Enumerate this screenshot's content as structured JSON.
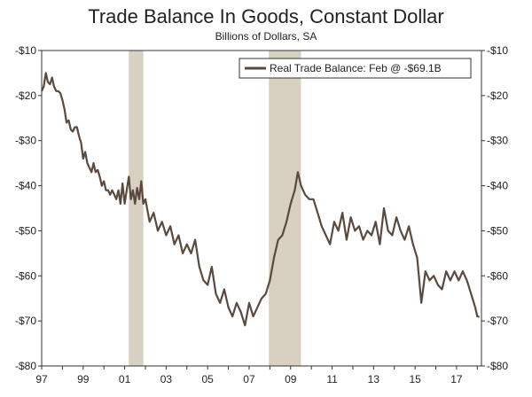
{
  "chart_data": {
    "type": "line",
    "title": "Trade Balance In Goods, Constant Dollar",
    "subtitle": "Billions of Dollars, SA",
    "xlabel": "",
    "ylabel": "",
    "ylim": [
      -80,
      -10
    ],
    "y_ticks": [
      -10,
      -20,
      -30,
      -40,
      -50,
      -60,
      -70,
      -80
    ],
    "y_tick_labels": [
      "-$10",
      "-$20",
      "-$30",
      "-$40",
      "-$50",
      "-$60",
      "-$70",
      "-$80"
    ],
    "xlim": [
      1997.0,
      2018.2
    ],
    "x_ticks": [
      1997,
      1999,
      2001,
      2003,
      2005,
      2007,
      2009,
      2011,
      2013,
      2015,
      2017
    ],
    "x_tick_labels": [
      "97",
      "99",
      "01",
      "03",
      "05",
      "07",
      "09",
      "11",
      "13",
      "15",
      "17"
    ],
    "grid": false,
    "legend_position": "top-right",
    "line_color": "#5a4a3e",
    "recession_color": "#d8d0c0",
    "recessions": [
      [
        2001.2,
        2001.9
      ],
      [
        2007.95,
        2009.5
      ]
    ],
    "series": [
      {
        "name": "Real Trade Balance: Feb @ -$69.1B",
        "x": [
          1997.0,
          1997.1,
          1997.2,
          1997.3,
          1997.4,
          1997.5,
          1997.6,
          1997.7,
          1997.8,
          1997.9,
          1998.0,
          1998.1,
          1998.2,
          1998.3,
          1998.4,
          1998.5,
          1998.6,
          1998.7,
          1998.8,
          1998.9,
          1999.0,
          1999.1,
          1999.2,
          1999.3,
          1999.4,
          1999.5,
          1999.6,
          1999.7,
          1999.8,
          1999.9,
          2000.0,
          2000.1,
          2000.2,
          2000.3,
          2000.4,
          2000.5,
          2000.6,
          2000.7,
          2000.8,
          2000.9,
          2001.0,
          2001.1,
          2001.2,
          2001.3,
          2001.4,
          2001.5,
          2001.6,
          2001.7,
          2001.8,
          2001.9,
          2002.0,
          2002.2,
          2002.4,
          2002.6,
          2002.8,
          2003.0,
          2003.2,
          2003.4,
          2003.6,
          2003.8,
          2004.0,
          2004.2,
          2004.4,
          2004.6,
          2004.8,
          2005.0,
          2005.2,
          2005.4,
          2005.6,
          2005.8,
          2006.0,
          2006.2,
          2006.4,
          2006.6,
          2006.8,
          2007.0,
          2007.2,
          2007.4,
          2007.6,
          2007.8,
          2008.0,
          2008.2,
          2008.4,
          2008.6,
          2008.8,
          2009.0,
          2009.2,
          2009.35,
          2009.5,
          2009.7,
          2009.9,
          2010.1,
          2010.3,
          2010.5,
          2010.7,
          2010.9,
          2011.1,
          2011.3,
          2011.5,
          2011.7,
          2011.9,
          2012.1,
          2012.3,
          2012.5,
          2012.7,
          2012.9,
          2013.1,
          2013.3,
          2013.5,
          2013.7,
          2013.9,
          2014.1,
          2014.3,
          2014.5,
          2014.7,
          2014.9,
          2015.1,
          2015.3,
          2015.5,
          2015.7,
          2015.9,
          2016.1,
          2016.3,
          2016.5,
          2016.7,
          2016.9,
          2017.1,
          2017.3,
          2017.5,
          2017.7,
          2017.9,
          2018.0,
          2018.1
        ],
        "y": [
          -19,
          -18,
          -15,
          -17,
          -17.5,
          -16,
          -18,
          -19,
          -19,
          -19.5,
          -21,
          -23,
          -26,
          -25.5,
          -27.5,
          -28,
          -27,
          -27,
          -29,
          -30.5,
          -34,
          -32.5,
          -35,
          -36,
          -37,
          -35,
          -37,
          -36.5,
          -38,
          -40,
          -39,
          -41,
          -41,
          -42,
          -41,
          -42,
          -43,
          -41,
          -44,
          -39.5,
          -44,
          -41,
          -38,
          -43,
          -41,
          -44,
          -40.5,
          -43,
          -39,
          -44,
          -43,
          -48,
          -46,
          -50,
          -48,
          -51,
          -49,
          -53,
          -51,
          -55,
          -53,
          -55,
          -52,
          -58,
          -61,
          -62,
          -58,
          -64,
          -66,
          -63,
          -67,
          -69,
          -66,
          -68,
          -71,
          -66,
          -69,
          -67,
          -65,
          -64,
          -61,
          -56,
          -52,
          -51,
          -48,
          -44,
          -41,
          -37,
          -40,
          -42,
          -43,
          -43,
          -46,
          -49,
          -51,
          -53,
          -48,
          -50,
          -46,
          -52,
          -47,
          -50,
          -49,
          -52,
          -50,
          -51,
          -48,
          -53,
          -45,
          -50,
          -51,
          -47,
          -50,
          -52,
          -49,
          -53,
          -56,
          -66,
          -59,
          -61,
          -60,
          -62,
          -63,
          -59,
          -61,
          -59,
          -61,
          -59,
          -61,
          -64,
          -67,
          -69,
          -69.1
        ]
      }
    ]
  }
}
